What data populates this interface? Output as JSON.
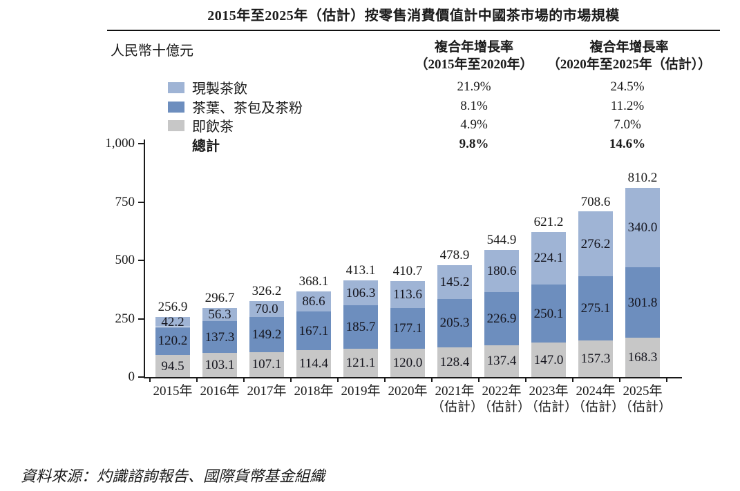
{
  "title": "2015年至2025年（估計）按零售消費價值計中國茶市場的市場規模",
  "unit_label": "人民幣十億元",
  "cagr": {
    "col1": {
      "line1": "複合年增長率",
      "line2": "（2015年至2020年）"
    },
    "col2": {
      "line1": "複合年增長率",
      "line2": "（2020年至2025年（估計））"
    }
  },
  "legend": {
    "rows": [
      {
        "label": "現製茶飲",
        "color": "#9fb4d5",
        "cagr_2015_2020": "21.9%",
        "cagr_2020_2025": "24.5%",
        "bold": false
      },
      {
        "label": "茶葉、茶包及茶粉",
        "color": "#6d8ebe",
        "cagr_2015_2020": "8.1%",
        "cagr_2020_2025": "11.2%",
        "bold": false
      },
      {
        "label": "即飲茶",
        "color": "#c7c7c7",
        "cagr_2015_2020": "4.9%",
        "cagr_2020_2025": "7.0%",
        "bold": false
      },
      {
        "label": "總計",
        "color": null,
        "cagr_2015_2020": "9.8%",
        "cagr_2020_2025": "14.6%",
        "bold": true
      }
    ]
  },
  "chart_data": {
    "type": "bar",
    "stacked": true,
    "title": "2015年至2025年（估計）按零售消費價值計中國茶市場的市場規模",
    "ylabel": "人民幣十億元",
    "ylim": [
      0,
      1000
    ],
    "yticks": [
      {
        "value": 0,
        "label": "0"
      },
      {
        "value": 250,
        "label": "250"
      },
      {
        "value": 500,
        "label": "500"
      },
      {
        "value": 750,
        "label": "750"
      },
      {
        "value": 1000,
        "label": "1,000"
      }
    ],
    "grid": false,
    "legend_position": "top-left",
    "total_legend_label": "總計",
    "categories": [
      "2015年",
      "2016年",
      "2017年",
      "2018年",
      "2019年",
      "2020年",
      "2021年",
      "2022年",
      "2023年",
      "2024年",
      "2025年"
    ],
    "category_sublabels": [
      "",
      "",
      "",
      "",
      "",
      "",
      "（估計）",
      "（估計）",
      "（估計）",
      "（估計）",
      "（估計）"
    ],
    "series": [
      {
        "name": "即飲茶",
        "color": "#c7c7c7",
        "values": [
          94.5,
          103.1,
          107.1,
          114.4,
          121.1,
          120.0,
          128.4,
          137.4,
          147.0,
          157.3,
          168.3
        ]
      },
      {
        "name": "茶葉、茶包及茶粉",
        "color": "#6d8ebe",
        "values": [
          120.2,
          137.3,
          149.2,
          167.1,
          185.7,
          177.1,
          205.3,
          226.9,
          250.1,
          275.1,
          301.8
        ]
      },
      {
        "name": "現製茶飲",
        "color": "#9fb4d5",
        "values": [
          42.2,
          56.3,
          70.0,
          86.6,
          106.3,
          113.6,
          145.2,
          180.6,
          224.1,
          276.2,
          340.0
        ]
      }
    ],
    "totals": [
      256.9,
      296.7,
      326.2,
      368.1,
      413.1,
      410.7,
      478.9,
      544.9,
      621.2,
      708.6,
      810.2
    ]
  },
  "source": "資料來源：灼識諮詢報告、國際貨幣基金組織"
}
